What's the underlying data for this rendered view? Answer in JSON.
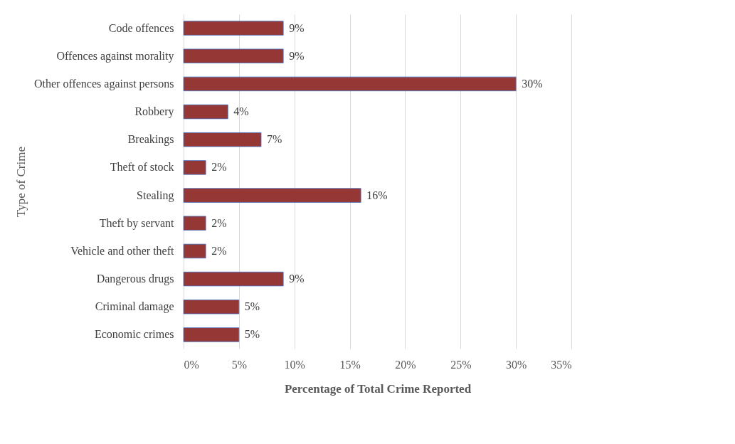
{
  "chart_data": {
    "type": "bar",
    "orientation": "horizontal",
    "xlabel": "Percentage of Total Crime Reported",
    "ylabel": "Type of Crime",
    "categories": [
      "Code offences",
      "Offences against morality",
      "Other offences against persons",
      "Robbery",
      "Breakings",
      "Theft of stock",
      "Stealing",
      "Theft by servant",
      "Vehicle and other theft",
      "Dangerous drugs",
      "Criminal damage",
      "Economic crimes"
    ],
    "values": [
      9,
      9,
      30,
      4,
      7,
      2,
      16,
      2,
      2,
      9,
      5,
      5
    ],
    "value_labels": [
      "9%",
      "9%",
      "30%",
      "4%",
      "7%",
      "2%",
      "16%",
      "2%",
      "2%",
      "9%",
      "5%",
      "5%"
    ],
    "color": "#953735",
    "xlim": [
      0,
      35
    ],
    "xticks": [
      {
        "value": 0,
        "label": "0%"
      },
      {
        "value": 5,
        "label": "5%"
      },
      {
        "value": 10,
        "label": "10%"
      },
      {
        "value": 15,
        "label": "15%"
      },
      {
        "value": 20,
        "label": "20%"
      },
      {
        "value": 25,
        "label": "25%"
      },
      {
        "value": 30,
        "label": "30%"
      },
      {
        "value": 35,
        "label": "35%"
      }
    ],
    "grid": "x"
  }
}
